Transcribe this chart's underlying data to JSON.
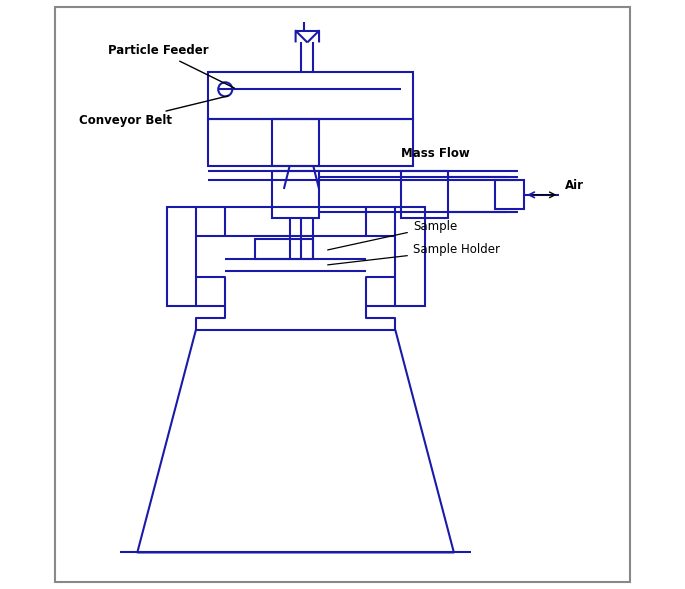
{
  "line_color": "#1a1aaa",
  "label_color": "#000000",
  "bg_color": "#ffffff",
  "border_color": "#aaaaaa",
  "lw": 1.5,
  "labels": {
    "particle_feeder": "Particle Feeder",
    "conveyor_belt": "Conveyor Belt",
    "mass_flow": "Mass Flow",
    "air": "Air",
    "sample": "Sample",
    "sample_holder": "Sample Holder"
  }
}
